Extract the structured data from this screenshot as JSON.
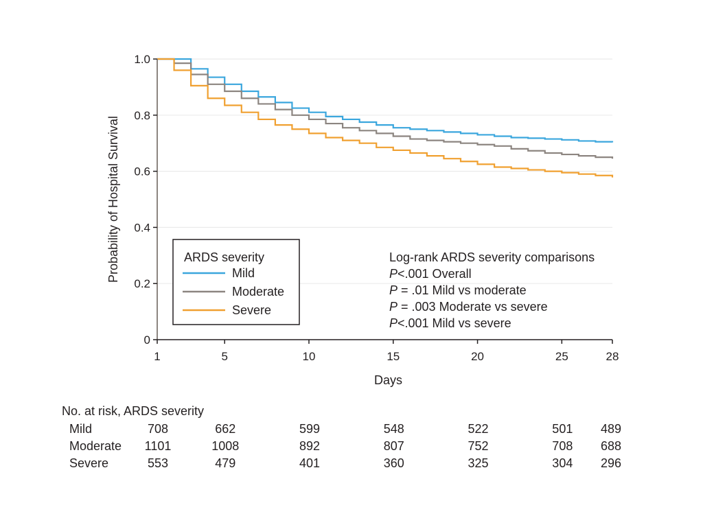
{
  "chart_data": {
    "type": "line",
    "step": true,
    "title": "",
    "xlabel": "Days",
    "ylabel": "Probability of Hospital Survival",
    "xlim": [
      1,
      28
    ],
    "ylim": [
      0,
      1.0
    ],
    "x_ticks": [
      1,
      5,
      10,
      15,
      20,
      25,
      28
    ],
    "y_ticks": [
      0,
      0.2,
      0.4,
      0.6,
      0.8,
      1.0
    ],
    "y_tick_labels": [
      "0",
      "0.2",
      "0.4",
      "0.6",
      "0.8",
      "1.0"
    ],
    "grid": "horizontal",
    "legend": {
      "title": "ARDS severity",
      "position": "lower-left"
    },
    "series": [
      {
        "name": "Mild",
        "color": "#3aa6dd",
        "x": [
          1,
          2,
          3,
          4,
          5,
          6,
          7,
          8,
          9,
          10,
          11,
          12,
          13,
          14,
          15,
          16,
          17,
          18,
          19,
          20,
          21,
          22,
          23,
          24,
          25,
          26,
          27,
          28
        ],
        "y": [
          1.0,
          1.0,
          0.965,
          0.935,
          0.91,
          0.885,
          0.865,
          0.845,
          0.825,
          0.81,
          0.795,
          0.785,
          0.775,
          0.765,
          0.755,
          0.75,
          0.745,
          0.74,
          0.735,
          0.73,
          0.725,
          0.72,
          0.718,
          0.715,
          0.712,
          0.708,
          0.705,
          0.703
        ]
      },
      {
        "name": "Moderate",
        "color": "#8c8580",
        "x": [
          1,
          2,
          3,
          4,
          5,
          6,
          7,
          8,
          9,
          10,
          11,
          12,
          13,
          14,
          15,
          16,
          17,
          18,
          19,
          20,
          21,
          22,
          23,
          24,
          25,
          26,
          27,
          28
        ],
        "y": [
          1.0,
          0.985,
          0.945,
          0.91,
          0.885,
          0.86,
          0.84,
          0.82,
          0.8,
          0.785,
          0.77,
          0.755,
          0.745,
          0.735,
          0.725,
          0.715,
          0.71,
          0.705,
          0.7,
          0.695,
          0.69,
          0.68,
          0.673,
          0.665,
          0.66,
          0.655,
          0.65,
          0.645
        ]
      },
      {
        "name": "Severe",
        "color": "#f0a030",
        "x": [
          1,
          2,
          3,
          4,
          5,
          6,
          7,
          8,
          9,
          10,
          11,
          12,
          13,
          14,
          15,
          16,
          17,
          18,
          19,
          20,
          21,
          22,
          23,
          24,
          25,
          26,
          27,
          28
        ],
        "y": [
          1.0,
          0.96,
          0.905,
          0.86,
          0.835,
          0.81,
          0.785,
          0.765,
          0.75,
          0.735,
          0.72,
          0.71,
          0.7,
          0.685,
          0.675,
          0.665,
          0.655,
          0.645,
          0.635,
          0.625,
          0.615,
          0.61,
          0.605,
          0.6,
          0.595,
          0.59,
          0.585,
          0.578
        ]
      }
    ],
    "annotation": {
      "title": "Log-rank ARDS severity comparisons",
      "lines": [
        {
          "p": "P",
          "text": "<.001 Overall"
        },
        {
          "p": "P",
          "text": " = .01 Mild vs moderate"
        },
        {
          "p": "P",
          "text": " = .003 Moderate vs severe"
        },
        {
          "p": "P",
          "text": "<.001 Mild vs severe"
        }
      ]
    }
  },
  "risk_table": {
    "title": "No. at risk, ARDS severity",
    "columns": [
      1,
      5,
      10,
      15,
      20,
      25,
      28
    ],
    "rows": [
      {
        "label": "Mild",
        "values": [
          "708",
          "662",
          "599",
          "548",
          "522",
          "501",
          "489"
        ]
      },
      {
        "label": "Moderate",
        "values": [
          "1101",
          "1008",
          "892",
          "807",
          "752",
          "708",
          "688"
        ]
      },
      {
        "label": "Severe",
        "values": [
          "553",
          "479",
          "401",
          "360",
          "325",
          "304",
          "296"
        ]
      }
    ]
  }
}
